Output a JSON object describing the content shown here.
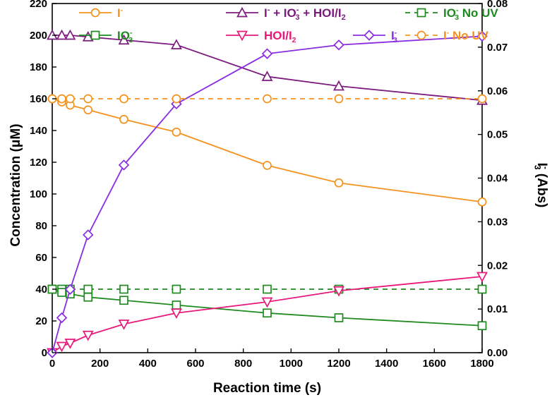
{
  "chart_data": {
    "type": "line",
    "xlabel": "Reaction time (s)",
    "ylabel": "Concentration (μM)",
    "y2label": {
      "base": "I",
      "sup": "-",
      "sub": "3",
      "rest": " (Abs)"
    },
    "xlim": [
      0,
      1800
    ],
    "ylim": [
      0,
      220
    ],
    "y2lim": [
      0,
      0.08
    ],
    "xticks": [
      0,
      200,
      400,
      600,
      800,
      1000,
      1200,
      1400,
      1600,
      1800
    ],
    "yticks": [
      0,
      20,
      40,
      60,
      80,
      100,
      120,
      140,
      160,
      180,
      200,
      220
    ],
    "y2ticks": [
      "0.00",
      "0.01",
      "0.02",
      "0.03",
      "0.04",
      "0.05",
      "0.06",
      "0.07",
      "0.08"
    ],
    "grid": false,
    "legend_position": "top",
    "series": [
      {
        "id": "iodide",
        "legend": {
          "base": "I",
          "sup": "-",
          "sub": "",
          "rest": ""
        },
        "color": "#f5921e",
        "marker": "circle",
        "dashed": false,
        "axis": "left",
        "x": [
          0,
          40,
          75,
          150,
          300,
          520,
          900,
          1200,
          1800
        ],
        "y": [
          160,
          158,
          156,
          153,
          147,
          139,
          118,
          107,
          95
        ]
      },
      {
        "id": "total",
        "legend": {
          "base": "I",
          "sup": "-",
          "sub": "",
          "rest": " + IO3 + HOI/I2"
        },
        "color": "#7b1b7e",
        "marker": "triangle-up",
        "dashed": false,
        "axis": "left",
        "x": [
          0,
          40,
          75,
          150,
          300,
          520,
          900,
          1200,
          1800
        ],
        "y": [
          200,
          200,
          200,
          199,
          197,
          194,
          174,
          168,
          159
        ]
      },
      {
        "id": "iodate-nouv",
        "legend": {
          "base": "IO",
          "sup": "-",
          "sub": "3",
          "rest": "  No UV"
        },
        "color": "#1f8a1f",
        "marker": "square",
        "dashed": true,
        "axis": "left",
        "x": [
          0,
          40,
          75,
          150,
          300,
          520,
          900,
          1200,
          1800
        ],
        "y": [
          40,
          40,
          40,
          40,
          40,
          40,
          40,
          40,
          40
        ]
      },
      {
        "id": "iodate",
        "legend": {
          "base": "IO",
          "sup": "-",
          "sub": "3",
          "rest": ""
        },
        "color": "#1f8a1f",
        "marker": "square",
        "dashed": false,
        "axis": "left",
        "x": [
          0,
          40,
          75,
          150,
          300,
          520,
          900,
          1200,
          1800
        ],
        "y": [
          40,
          38,
          37,
          35,
          33,
          30,
          25,
          22,
          17
        ]
      },
      {
        "id": "hoi",
        "legend": {
          "base": "HOI/I",
          "sup": "",
          "sub": "2",
          "rest": ""
        },
        "color": "#e8177a",
        "marker": "triangle-down",
        "dashed": false,
        "axis": "left",
        "x": [
          0,
          40,
          75,
          150,
          300,
          520,
          900,
          1200,
          1800
        ],
        "y": [
          0,
          4,
          6,
          11,
          18,
          25,
          32,
          39,
          48
        ]
      },
      {
        "id": "triiodide",
        "legend": {
          "base": "I",
          "sup": "-",
          "sub": "3",
          "rest": ""
        },
        "color": "#8a2be2",
        "marker": "diamond",
        "dashed": false,
        "axis": "right",
        "x": [
          0,
          40,
          75,
          150,
          300,
          520,
          900,
          1200,
          1800
        ],
        "y": [
          0.0,
          0.008,
          0.0145,
          0.027,
          0.043,
          0.057,
          0.0685,
          0.0705,
          0.0725
        ]
      },
      {
        "id": "iodide-nouv",
        "legend": {
          "base": "I",
          "sup": "-",
          "sub": "",
          "rest": "  No UV"
        },
        "color": "#f5921e",
        "marker": "circle",
        "dashed": true,
        "axis": "left",
        "x": [
          0,
          40,
          75,
          150,
          300,
          520,
          900,
          1200,
          1800
        ],
        "y": [
          160,
          160,
          160,
          160,
          160,
          160,
          160,
          160,
          160
        ]
      }
    ]
  }
}
